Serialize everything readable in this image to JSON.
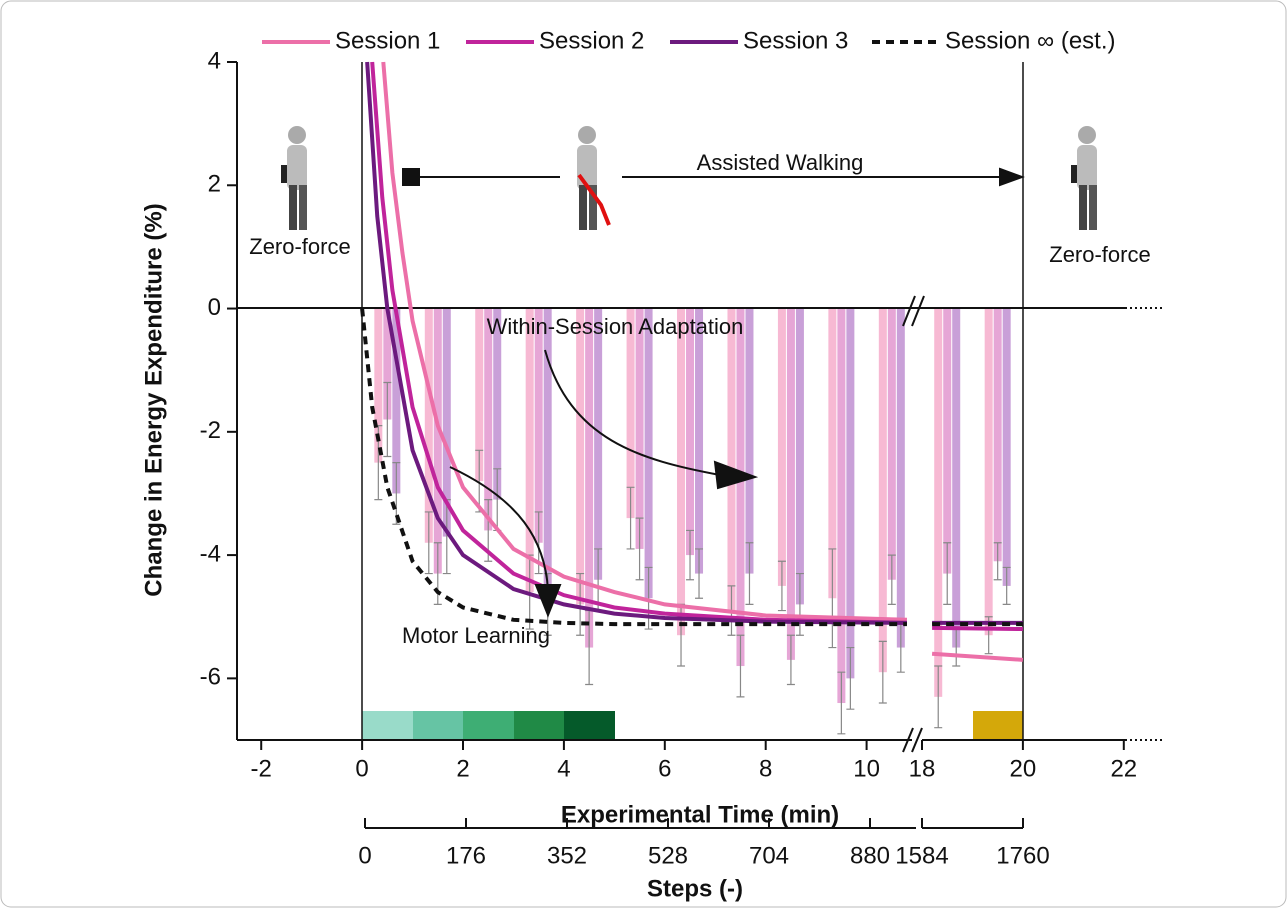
{
  "chart_data": {
    "type": "line",
    "y_label": "Change in Energy Expenditure (%)",
    "x_label": "Experimental Time (min)",
    "x2_label": "Steps (-)",
    "xlim": [
      -2.48,
      22.77
    ],
    "xbreak": [
      10.9,
      18
    ],
    "xticks": [
      -2,
      0,
      2,
      4,
      6,
      8,
      10,
      18,
      20,
      22
    ],
    "ylim": [
      -7,
      4
    ],
    "yticks": [
      -6,
      -4,
      -2,
      0,
      2,
      4
    ],
    "x2lim": [
      0,
      1760
    ],
    "x2break": [
      960,
      1584
    ],
    "x2ticks": [
      0,
      176,
      352,
      528,
      704,
      880,
      1584,
      1760
    ],
    "annotations": {
      "zero_force_left": "Zero-force",
      "zero_force_right": "Zero-force",
      "assisted": "Assisted Walking",
      "within": "Within-Session Adaptation",
      "motor": "Motor Learning"
    },
    "series": [
      {
        "name": "Session 1",
        "color": "#ec6fa8",
        "dash": false,
        "x": [
          0.42,
          0.6,
          0.8,
          1,
          1.5,
          2,
          3,
          4,
          5,
          6,
          8,
          10.8,
          18.2,
          20
        ],
        "values": [
          4,
          2.2,
          0.9,
          -0.2,
          -1.9,
          -2.9,
          -3.9,
          -4.35,
          -4.6,
          -4.8,
          -4.98,
          -5.05,
          -5.6,
          -5.7
        ]
      },
      {
        "name": "Session 2",
        "color": "#c0249b",
        "dash": false,
        "x": [
          0.2,
          0.4,
          0.6,
          1,
          1.5,
          2,
          3,
          4,
          5,
          6,
          8,
          10.8,
          18.2,
          20
        ],
        "values": [
          4,
          1.8,
          0.3,
          -1.6,
          -2.9,
          -3.6,
          -4.3,
          -4.65,
          -4.85,
          -4.95,
          -5.05,
          -5.1,
          -5.18,
          -5.2
        ]
      },
      {
        "name": "Session 3",
        "color": "#6c1a7e",
        "dash": false,
        "x": [
          0.1,
          0.3,
          0.5,
          1,
          1.5,
          2,
          3,
          4,
          5,
          6,
          8,
          10.8,
          18.2,
          20
        ],
        "values": [
          4,
          1.5,
          0,
          -2.3,
          -3.4,
          -4.0,
          -4.55,
          -4.8,
          -4.95,
          -5.02,
          -5.08,
          -5.1,
          -5.1,
          -5.1
        ]
      },
      {
        "name": "Session ∞ (est.)",
        "color": "#111111",
        "dash": true,
        "x": [
          0,
          0.2,
          0.5,
          1,
          1.5,
          2,
          3,
          4,
          5,
          6,
          8,
          10.8,
          18.2,
          20
        ],
        "values": [
          0,
          -1.6,
          -2.9,
          -4.1,
          -4.6,
          -4.85,
          -5.05,
          -5.1,
          -5.12,
          -5.12,
          -5.12,
          -5.12,
          -5.12,
          -5.12
        ]
      }
    ],
    "bars": {
      "x": [
        0.5,
        1.5,
        2.5,
        3.5,
        4.5,
        5.5,
        6.5,
        7.5,
        8.5,
        9.5,
        10.5,
        18.5,
        19.5
      ],
      "series": [
        {
          "color": "#f7b9d3",
          "values": [
            -2.5,
            -3.8,
            -2.8,
            -4.6,
            -4.8,
            -3.4,
            -5.3,
            -4.9,
            -4.5,
            -4.7,
            -5.9,
            -6.3,
            -5.3
          ],
          "errors": [
            0.6,
            0.5,
            0.5,
            0.6,
            0.5,
            0.5,
            0.5,
            0.4,
            0.4,
            0.8,
            0.5,
            0.5,
            0.3
          ]
        },
        {
          "color": "#e6a6d6",
          "values": [
            -1.8,
            -4.3,
            -3.6,
            -3.8,
            -5.5,
            -3.9,
            -4.0,
            -5.8,
            -5.7,
            -6.4,
            -4.4,
            -4.3,
            -4.1
          ],
          "errors": [
            0.6,
            0.5,
            0.5,
            0.5,
            0.6,
            0.5,
            0.4,
            0.5,
            0.4,
            0.5,
            0.4,
            0.5,
            0.3
          ]
        },
        {
          "color": "#c9a0d8",
          "values": [
            -3.0,
            -3.7,
            -3.1,
            -4.8,
            -4.4,
            -4.7,
            -4.3,
            -4.3,
            -4.8,
            -6.0,
            -5.5,
            -5.5,
            -4.5
          ],
          "errors": [
            0.5,
            0.6,
            0.5,
            0.5,
            0.5,
            0.5,
            0.4,
            0.5,
            0.5,
            0.5,
            0.4,
            0.3,
            0.3
          ]
        }
      ]
    }
  }
}
